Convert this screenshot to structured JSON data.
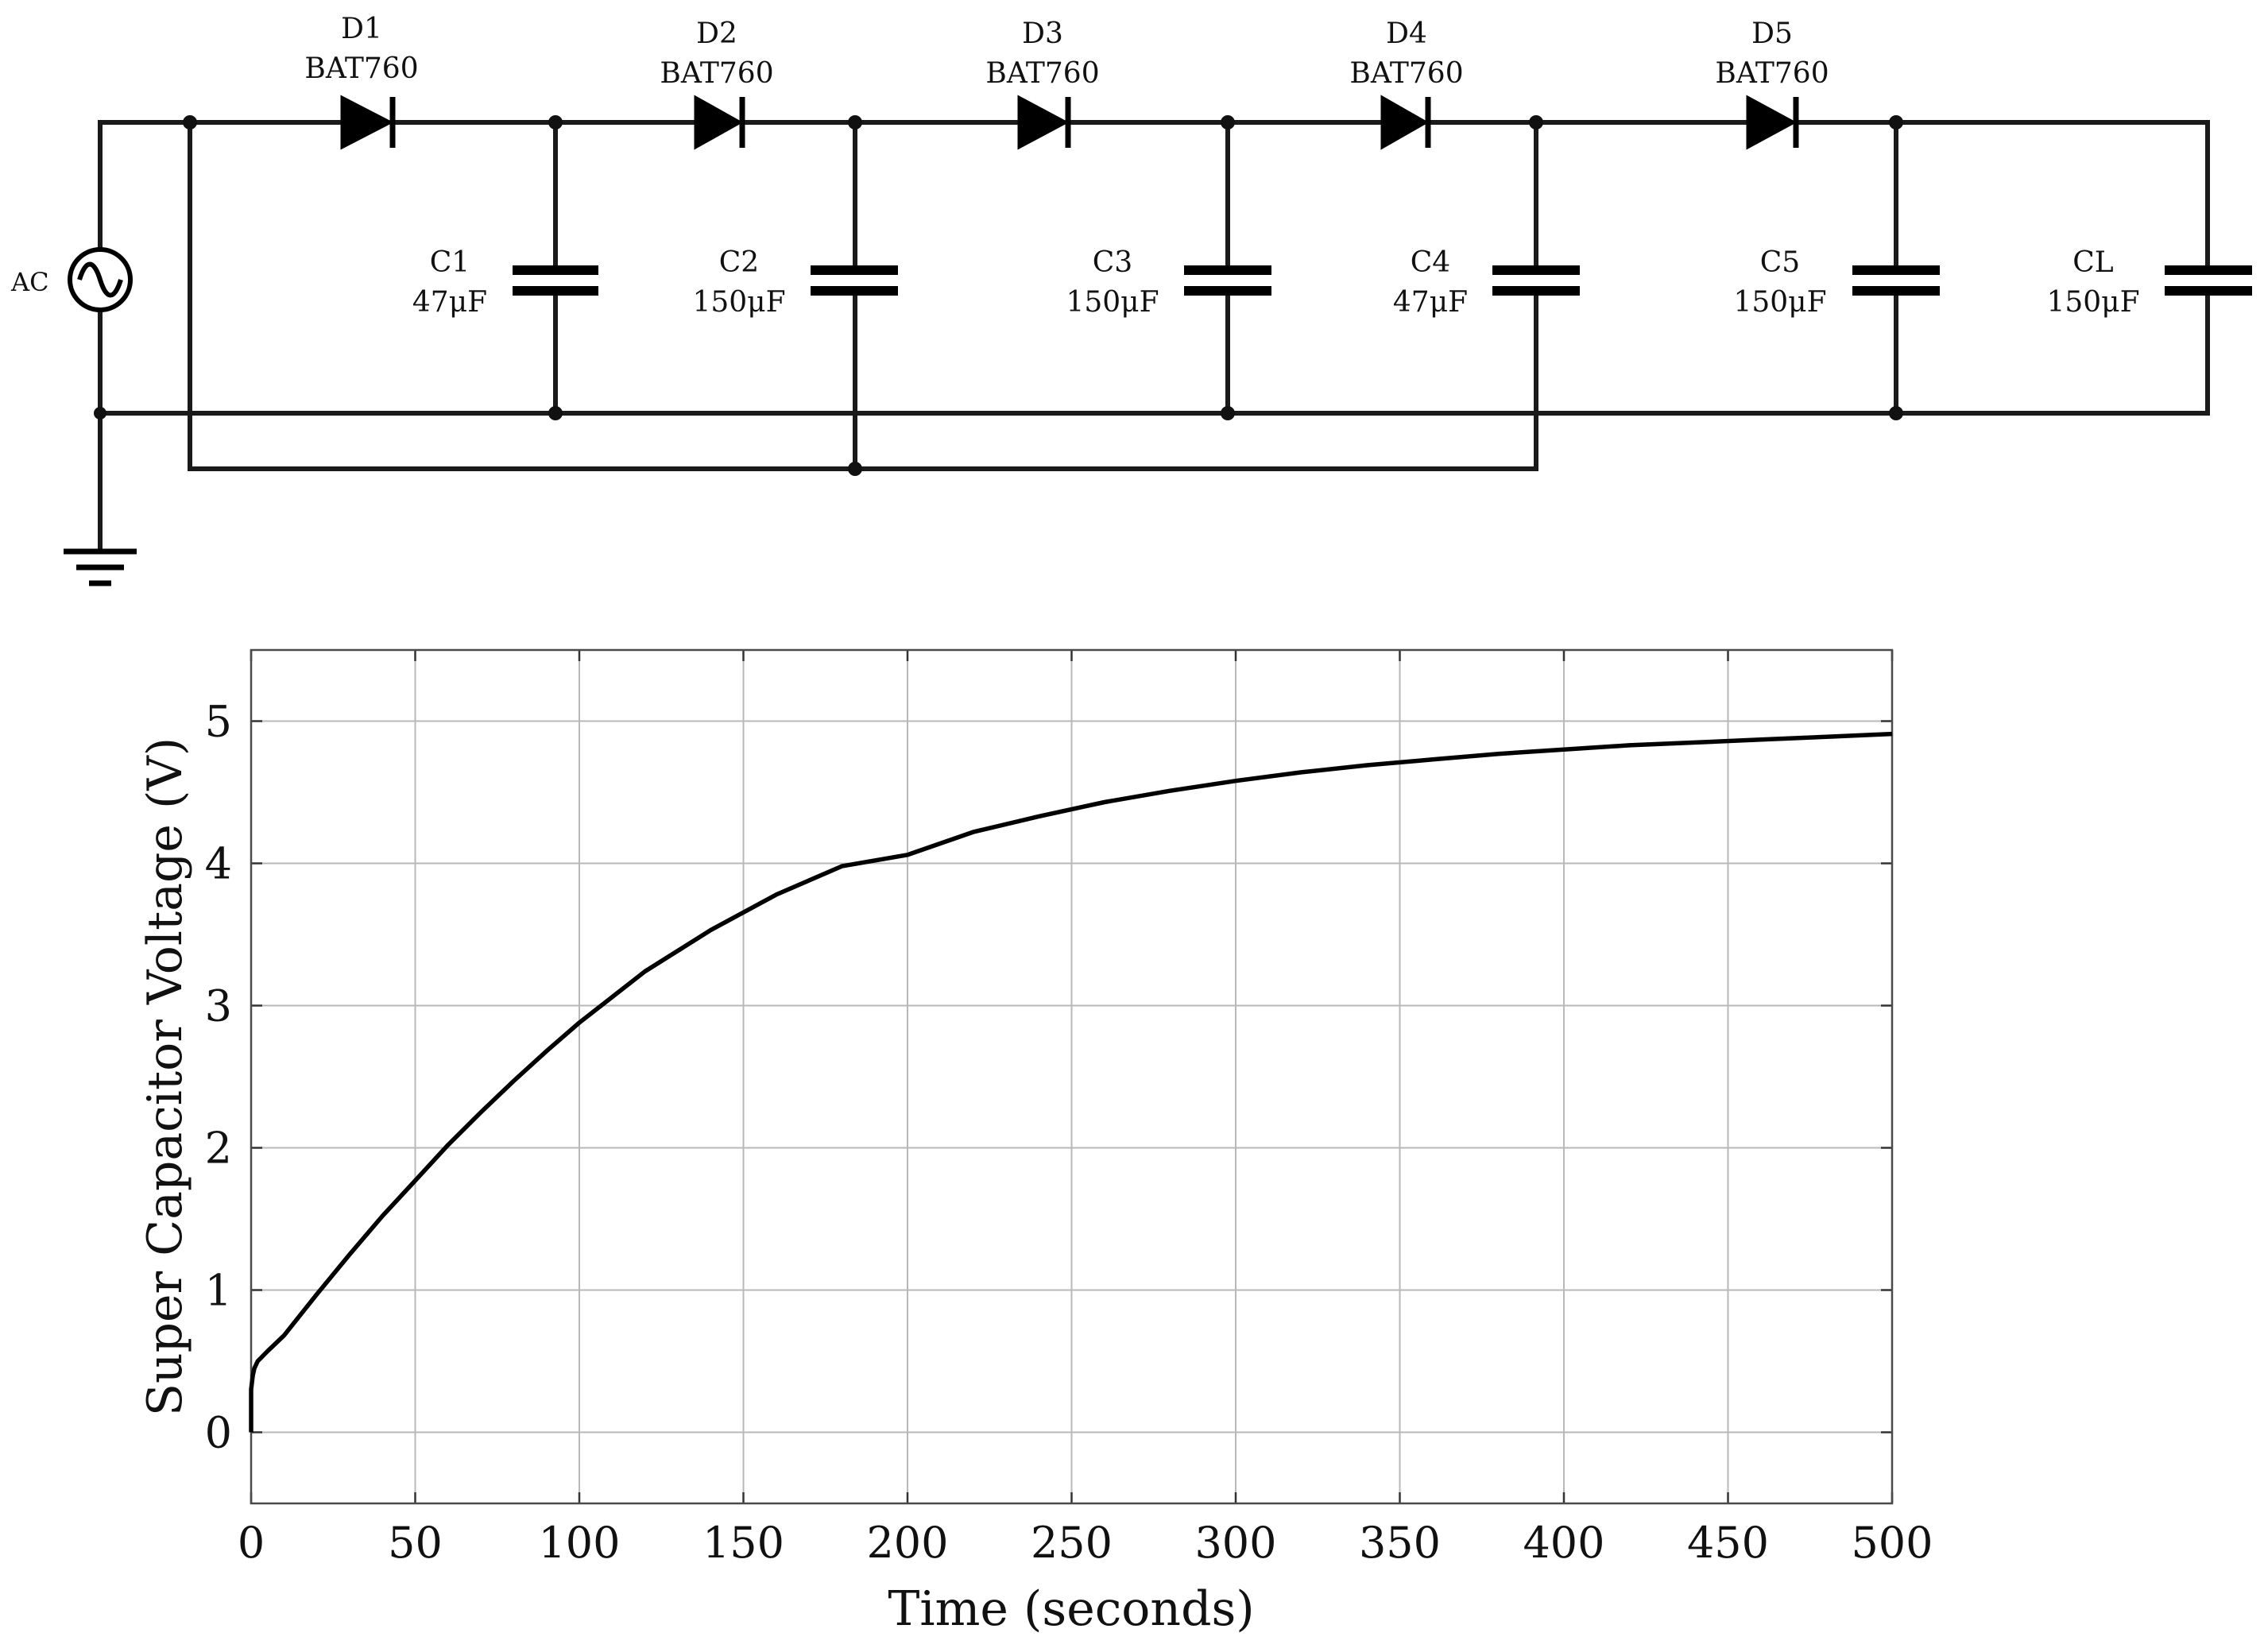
{
  "circuit": {
    "source_label": "AC",
    "diodes": [
      {
        "ref": "D1",
        "part": "BAT760"
      },
      {
        "ref": "D2",
        "part": "BAT760"
      },
      {
        "ref": "D3",
        "part": "BAT760"
      },
      {
        "ref": "D4",
        "part": "BAT760"
      },
      {
        "ref": "D5",
        "part": "BAT760"
      }
    ],
    "capacitors": [
      {
        "ref": "C1",
        "value": "47μF"
      },
      {
        "ref": "C2",
        "value": "150μF"
      },
      {
        "ref": "C3",
        "value": "150μF"
      },
      {
        "ref": "C4",
        "value": "47μF"
      },
      {
        "ref": "C5",
        "value": "150μF"
      },
      {
        "ref": "CL",
        "value": "150μF"
      }
    ]
  },
  "chart_data": {
    "type": "line",
    "title": "",
    "xlabel": "Time (seconds)",
    "ylabel": "Super Capacitor Voltage (V)",
    "xlim": [
      0,
      500
    ],
    "ylim": [
      -0.5,
      5.5
    ],
    "xticks": [
      0,
      50,
      100,
      150,
      200,
      250,
      300,
      350,
      400,
      450,
      500
    ],
    "yticks": [
      0,
      1,
      2,
      3,
      4,
      5
    ],
    "xtick_labels": [
      "0",
      "50",
      "100",
      "150",
      "200",
      "250",
      "300",
      "350",
      "400",
      "450",
      "500"
    ],
    "ytick_labels": [
      "0",
      "1",
      "2",
      "3",
      "4",
      "5"
    ],
    "grid": true,
    "legend": "none",
    "series": [
      {
        "x": [
          0,
          0.5,
          1,
          2,
          5,
          10,
          20,
          30,
          40,
          50,
          60,
          70,
          80,
          90,
          100,
          120,
          140,
          160,
          180,
          200,
          220,
          240,
          260,
          280,
          300,
          320,
          340,
          360,
          380,
          400,
          420,
          440,
          460,
          480,
          500
        ],
        "y": [
          0.3,
          0.4,
          0.45,
          0.5,
          0.57,
          0.68,
          0.97,
          1.25,
          1.52,
          1.77,
          2.02,
          2.25,
          2.47,
          2.68,
          2.88,
          3.24,
          3.53,
          3.78,
          3.98,
          4.06,
          4.22,
          4.33,
          4.43,
          4.51,
          4.58,
          4.64,
          4.69,
          4.73,
          4.77,
          4.8,
          4.83,
          4.85,
          4.87,
          4.89,
          4.91
        ],
        "color": "#000000"
      }
    ]
  }
}
